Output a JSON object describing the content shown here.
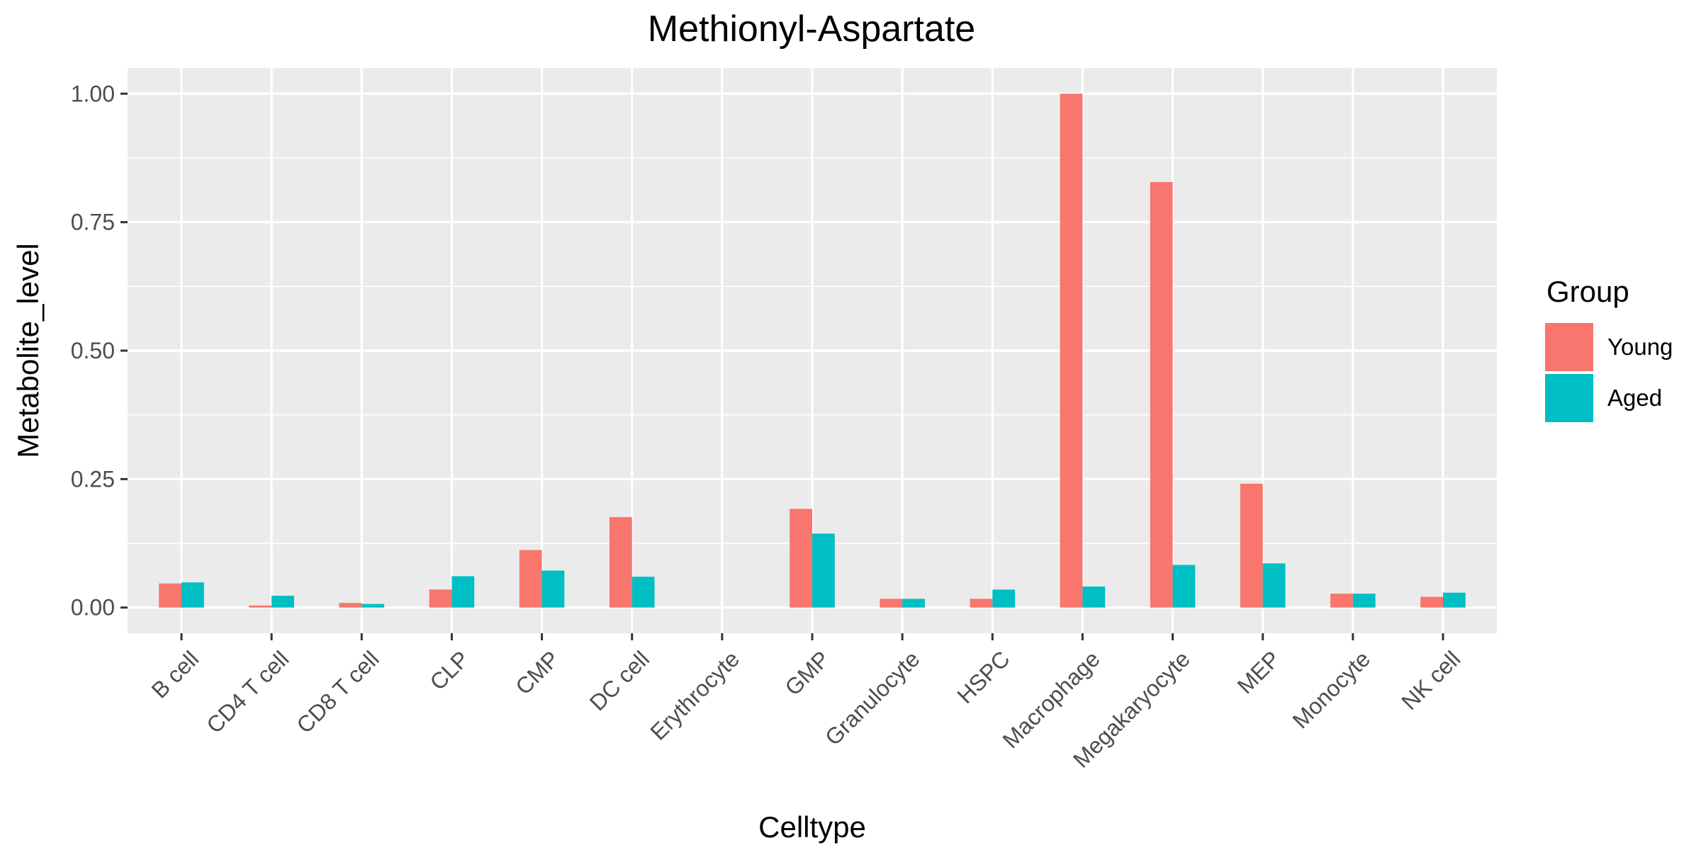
{
  "chart_data": {
    "type": "bar",
    "title": "Methionyl-Aspartate",
    "xlabel": "Celltype",
    "ylabel": "Metabolite_level",
    "categories": [
      "B cell",
      "CD4 T cell",
      "CD8 T cell",
      "CLP",
      "CMP",
      "DC cell",
      "Erythrocyte",
      "GMP",
      "Granulocyte",
      "HSPC",
      "Macrophage",
      "Megakaryocyte",
      "MEP",
      "Monocyte",
      "NK cell"
    ],
    "series": [
      {
        "name": "Young",
        "color": "#F8766D",
        "values": [
          0.047,
          0.004,
          0.009,
          0.035,
          0.112,
          0.176,
          0.0,
          0.192,
          0.017,
          0.017,
          1.0,
          0.828,
          0.241,
          0.027,
          0.021
        ]
      },
      {
        "name": "Aged",
        "color": "#00BFC4",
        "values": [
          0.049,
          0.023,
          0.007,
          0.061,
          0.072,
          0.06,
          0.0,
          0.144,
          0.017,
          0.035,
          0.041,
          0.083,
          0.086,
          0.027,
          0.029
        ]
      }
    ],
    "ylim": [
      -0.05,
      1.05
    ],
    "yticks": [
      0.0,
      0.25,
      0.5,
      0.75,
      1.0
    ],
    "ytick_labels": [
      "0.00",
      "0.25",
      "0.50",
      "0.75",
      "1.00"
    ],
    "legend": {
      "title": "Group",
      "position": "right"
    },
    "grid": true,
    "panel_color": "#EBEBEB"
  }
}
